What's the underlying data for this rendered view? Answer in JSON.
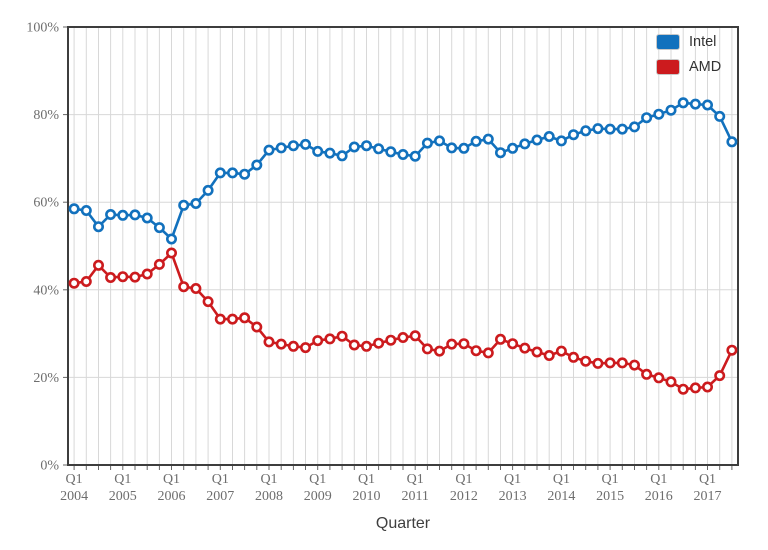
{
  "chart_data": {
    "type": "line",
    "title": "",
    "xlabel": "Quarter",
    "ylabel": "",
    "ylim": [
      0,
      100
    ],
    "grid": true,
    "legend_position": "top-right",
    "marker": "open-circle",
    "yticks": [
      0,
      20,
      40,
      60,
      80,
      100
    ],
    "ytick_labels": [
      "0%",
      "20%",
      "40%",
      "60%",
      "80%",
      "100%"
    ],
    "x_quarter_row": "Q1",
    "x_year_ticks": [
      "2004",
      "2005",
      "2006",
      "2007",
      "2008",
      "2009",
      "2010",
      "2011",
      "2012",
      "2013",
      "2014",
      "2015",
      "2016",
      "2017"
    ],
    "categories": [
      "2004 Q1",
      "2004 Q2",
      "2004 Q3",
      "2004 Q4",
      "2005 Q1",
      "2005 Q2",
      "2005 Q3",
      "2005 Q4",
      "2006 Q1",
      "2006 Q2",
      "2006 Q3",
      "2006 Q4",
      "2007 Q1",
      "2007 Q2",
      "2007 Q3",
      "2007 Q4",
      "2008 Q1",
      "2008 Q2",
      "2008 Q3",
      "2008 Q4",
      "2009 Q1",
      "2009 Q2",
      "2009 Q3",
      "2009 Q4",
      "2010 Q1",
      "2010 Q2",
      "2010 Q3",
      "2010 Q4",
      "2011 Q1",
      "2011 Q2",
      "2011 Q3",
      "2011 Q4",
      "2012 Q1",
      "2012 Q2",
      "2012 Q3",
      "2012 Q4",
      "2013 Q1",
      "2013 Q2",
      "2013 Q3",
      "2013 Q4",
      "2014 Q1",
      "2014 Q2",
      "2014 Q3",
      "2014 Q4",
      "2015 Q1",
      "2015 Q2",
      "2015 Q3",
      "2015 Q4",
      "2016 Q1",
      "2016 Q2",
      "2016 Q3",
      "2016 Q4",
      "2017 Q1",
      "2017 Q2",
      "2017 Q3"
    ],
    "series": [
      {
        "name": "Intel",
        "color": "#1271bd",
        "values": [
          58.5,
          58.1,
          54.4,
          57.2,
          57.0,
          57.1,
          56.4,
          54.2,
          51.6,
          59.3,
          59.7,
          62.7,
          66.7,
          66.7,
          66.4,
          68.5,
          71.9,
          72.4,
          72.9,
          73.2,
          71.6,
          71.2,
          70.6,
          72.6,
          72.9,
          72.2,
          71.5,
          70.9,
          70.5,
          73.5,
          74.0,
          72.4,
          72.3,
          73.9,
          74.4,
          71.3,
          72.3,
          73.3,
          74.2,
          75.0,
          74.0,
          75.4,
          76.3,
          76.8,
          76.7,
          76.7,
          77.2,
          79.3,
          80.1,
          81.0,
          82.7,
          82.4,
          82.2,
          79.6,
          73.8
        ]
      },
      {
        "name": "AMD",
        "color": "#cc1b1e",
        "values": [
          41.5,
          41.9,
          45.6,
          42.8,
          43.0,
          42.9,
          43.6,
          45.8,
          48.4,
          40.7,
          40.3,
          37.3,
          33.3,
          33.3,
          33.6,
          31.5,
          28.1,
          27.6,
          27.1,
          26.8,
          28.4,
          28.8,
          29.4,
          27.4,
          27.1,
          27.8,
          28.5,
          29.1,
          29.5,
          26.5,
          26.0,
          27.6,
          27.7,
          26.1,
          25.6,
          28.7,
          27.7,
          26.7,
          25.8,
          25.0,
          26.0,
          24.6,
          23.7,
          23.2,
          23.3,
          23.3,
          22.8,
          20.7,
          19.9,
          19.0,
          17.3,
          17.6,
          17.8,
          20.4,
          26.2
        ]
      }
    ],
    "colors": {
      "grid": "#d8d8d8",
      "border": "#3d3d3d",
      "tick": "#666666",
      "tick_text": "#6e6e6e",
      "axis_title_text": "#3f3f3f",
      "marker_fill": "#ffffff"
    }
  }
}
